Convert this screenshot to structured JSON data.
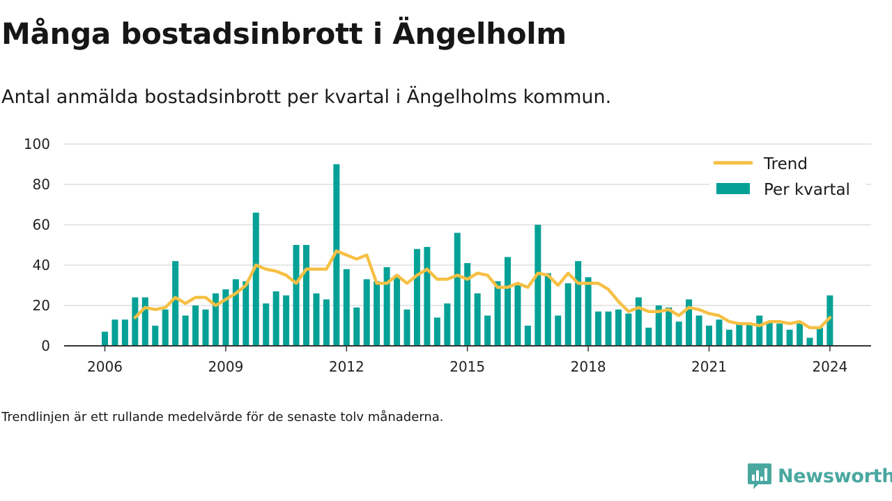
{
  "title": "Många bostadsinbrott i Ängelholm",
  "subtitle": "Antal anmälda bostadsinbrott per kvartal i Ängelholms kommun.",
  "note": "Trendlinjen är ett rullande medelvärde för de senaste tolv månaderna.",
  "brand": "Newsworthy",
  "colors": {
    "bar": "#05a196",
    "trend": "#f6c045",
    "grid": "#dddddd",
    "axis": "#333333"
  },
  "icons": {
    "brand": "newsworthy-chart-bubble-icon"
  },
  "chart_data": {
    "type": "bar",
    "x_start": 2006,
    "x_ticks": [
      "2006",
      "2009",
      "2012",
      "2015",
      "2018",
      "2021",
      "2024"
    ],
    "y_ticks": [
      "0",
      "20",
      "40",
      "60",
      "80",
      "100"
    ],
    "ylim": [
      0,
      100
    ],
    "legend": {
      "trend": "Trend",
      "bars": "Per kvartal"
    },
    "legend_position": "top-right",
    "grid": true,
    "series": [
      {
        "name": "Per kvartal",
        "type": "bar",
        "values": [
          7,
          13,
          13,
          24,
          24,
          10,
          18,
          42,
          15,
          20,
          18,
          26,
          28,
          33,
          32,
          66,
          21,
          27,
          25,
          50,
          50,
          26,
          23,
          90,
          38,
          19,
          33,
          32,
          39,
          35,
          18,
          48,
          49,
          14,
          21,
          56,
          41,
          26,
          15,
          32,
          44,
          30,
          10,
          60,
          36,
          15,
          31,
          42,
          34,
          17,
          17,
          18,
          16,
          24,
          9,
          20,
          19,
          12,
          23,
          15,
          10,
          13,
          8,
          11,
          11,
          15,
          12,
          11,
          8,
          11,
          4,
          9,
          25
        ]
      },
      {
        "name": "Trend",
        "type": "line",
        "values": [
          null,
          null,
          null,
          14,
          19,
          18,
          19,
          24,
          21,
          24,
          24,
          20,
          23,
          26,
          30,
          40,
          38,
          37,
          35,
          31,
          38,
          38,
          38,
          47,
          45,
          43,
          45,
          31,
          31,
          35,
          31,
          35,
          38,
          33,
          33,
          35,
          33,
          36,
          35,
          29,
          29,
          31,
          29,
          36,
          35,
          30,
          36,
          31,
          31,
          31,
          28,
          22,
          17,
          19,
          17,
          17,
          18,
          15,
          19,
          18,
          16,
          15,
          12,
          11,
          11,
          10,
          12,
          12,
          11,
          12,
          9,
          9,
          14
        ]
      }
    ]
  }
}
